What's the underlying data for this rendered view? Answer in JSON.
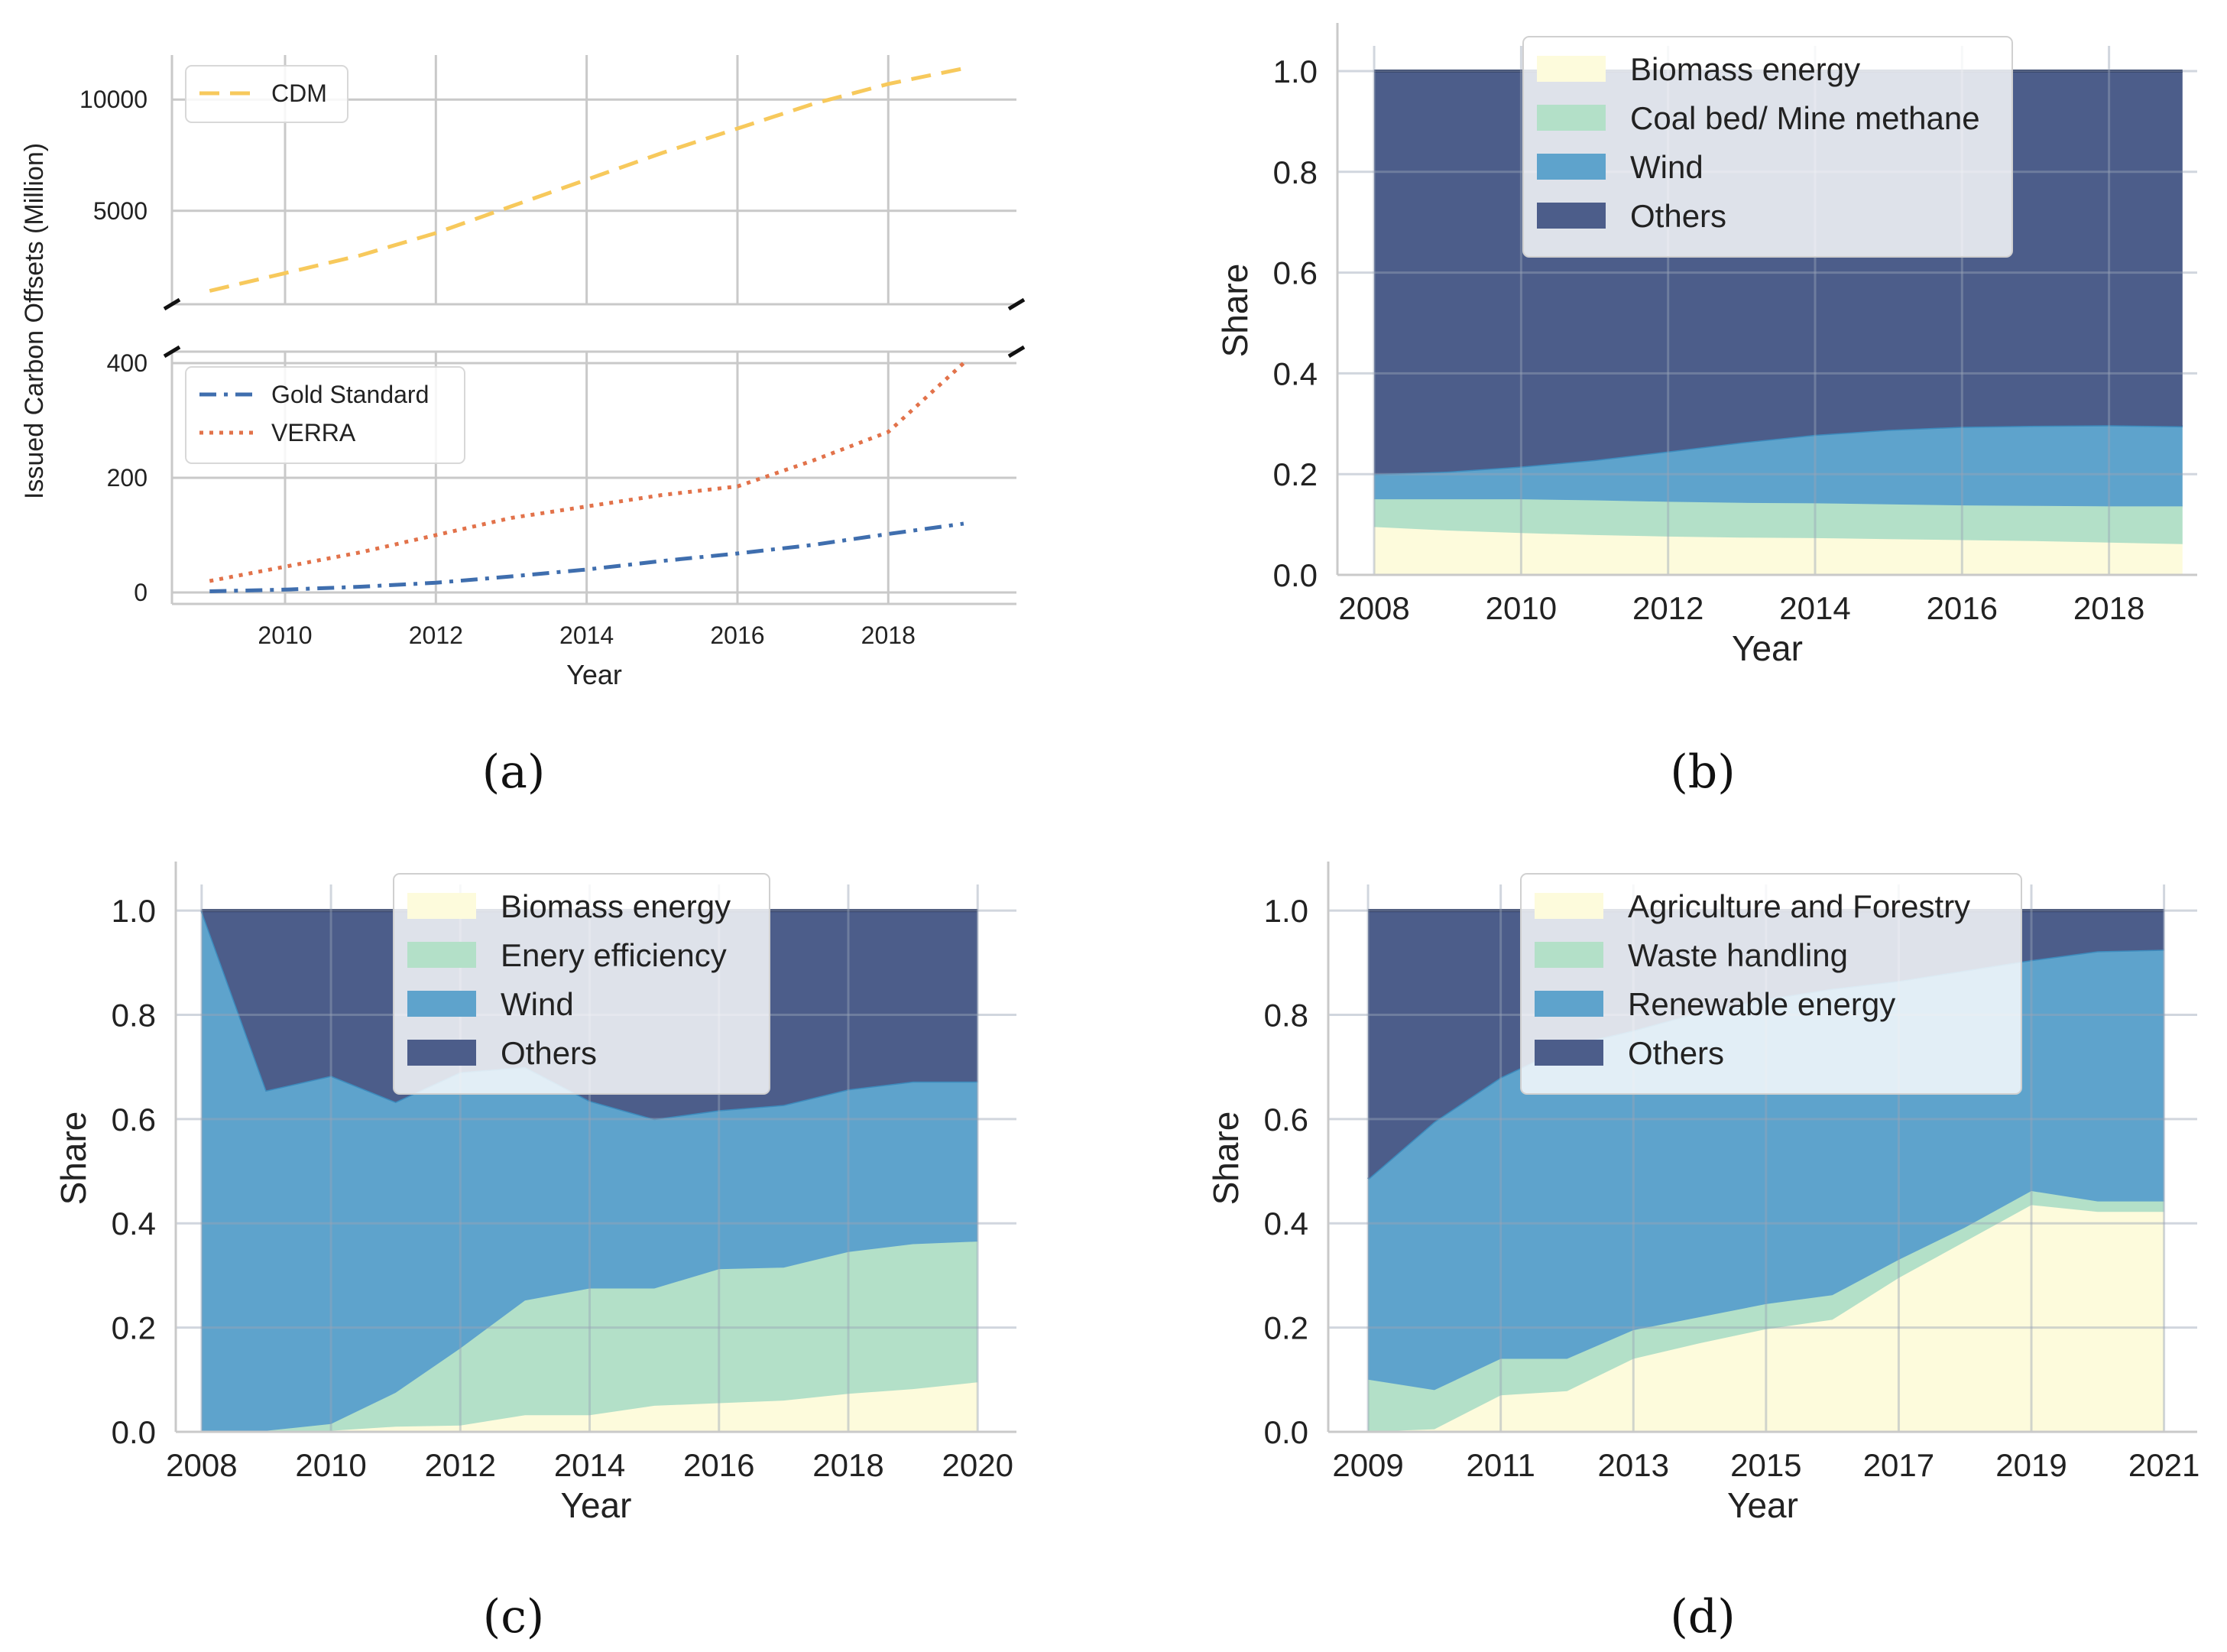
{
  "chart_data": [
    {
      "panel": "(a)",
      "type": "line",
      "broken_axis": true,
      "ylabel": "Issued Carbon Offsets (Million)",
      "xlabel": "Year",
      "x": [
        2009,
        2010,
        2011,
        2012,
        2013,
        2014,
        2015,
        2016,
        2017,
        2018,
        2019
      ],
      "xticks": [
        "2010",
        "2012",
        "2014",
        "2016",
        "2018"
      ],
      "xlim": [
        2008.5,
        2019.7
      ],
      "upper": {
        "ylim": [
          800,
          12000
        ],
        "yticks": [
          "5000",
          "10000"
        ],
        "legend": "top-left",
        "series": [
          {
            "name": "CDM",
            "color": "#f7c95c",
            "style": "dashed",
            "values": [
              1400,
              2200,
              3000,
              4000,
              5200,
              6400,
              7600,
              8700,
              9800,
              10700,
              11400
            ]
          }
        ]
      },
      "lower": {
        "ylim": [
          -20,
          420
        ],
        "yticks": [
          "0",
          "200",
          "400"
        ],
        "legend": "top-left",
        "series": [
          {
            "name": "Gold Standard",
            "color": "#3f6eae",
            "style": "dashdot",
            "values": [
              2,
              5,
              10,
              17,
              28,
              40,
              55,
              68,
              83,
              102,
              120
            ]
          },
          {
            "name": "VERRA",
            "color": "#e2724a",
            "style": "dotted",
            "values": [
              20,
              45,
              70,
              100,
              130,
              150,
              170,
              185,
              230,
              280,
              400
            ]
          }
        ]
      }
    },
    {
      "panel": "(b)",
      "type": "area",
      "stacked": true,
      "ylabel": "Share",
      "xlabel": "Year",
      "x": [
        2008,
        2009,
        2010,
        2011,
        2012,
        2013,
        2014,
        2015,
        2016,
        2017,
        2018,
        2019
      ],
      "xticks": [
        "2008",
        "2010",
        "2012",
        "2014",
        "2016",
        "2018"
      ],
      "xlim": [
        2007.5,
        2019.2
      ],
      "ylim": [
        0,
        1.05
      ],
      "yticks": [
        "0.0",
        "0.2",
        "0.4",
        "0.6",
        "0.8",
        "1.0"
      ],
      "legend": "top-center",
      "series": [
        {
          "name": "Biomass energy",
          "color": "#fdfbdc",
          "cum": [
            0.095,
            0.088,
            0.083,
            0.079,
            0.076,
            0.074,
            0.073,
            0.071,
            0.069,
            0.067,
            0.064,
            0.061
          ]
        },
        {
          "name": "Coal bed/ Mine methane",
          "color": "#b3e0c8",
          "cum": [
            0.15,
            0.15,
            0.15,
            0.148,
            0.145,
            0.143,
            0.142,
            0.14,
            0.138,
            0.137,
            0.136,
            0.136
          ]
        },
        {
          "name": "Wind",
          "color": "#5ea3cc",
          "cum": [
            0.2,
            0.205,
            0.215,
            0.228,
            0.245,
            0.263,
            0.278,
            0.288,
            0.294,
            0.296,
            0.297,
            0.295
          ]
        },
        {
          "name": "Others",
          "color": "#4c5d8a",
          "cum": [
            1,
            1,
            1,
            1,
            1,
            1,
            1,
            1,
            1,
            1,
            1,
            1
          ]
        }
      ]
    },
    {
      "panel": "(c)",
      "type": "area",
      "stacked": true,
      "ylabel": "Share",
      "xlabel": "Year",
      "x": [
        2008,
        2009,
        2010,
        2011,
        2012,
        2013,
        2014,
        2015,
        2016,
        2017,
        2018,
        2019,
        2020
      ],
      "xticks": [
        "2008",
        "2010",
        "2012",
        "2014",
        "2016",
        "2018",
        "2020"
      ],
      "xlim": [
        2007.6,
        2020.6
      ],
      "ylim": [
        0,
        1.05
      ],
      "yticks": [
        "0.0",
        "0.2",
        "0.4",
        "0.6",
        "0.8",
        "1.0"
      ],
      "legend": "top-center",
      "series": [
        {
          "name": "Biomass energy",
          "color": "#fdfbdc",
          "cum": [
            0,
            0,
            0.002,
            0.01,
            0.012,
            0.032,
            0.032,
            0.05,
            0.055,
            0.06,
            0.073,
            0.082,
            0.095
          ]
        },
        {
          "name": "Enery efficiency",
          "color": "#b3e0c8",
          "cum": [
            0,
            0.002,
            0.015,
            0.075,
            0.16,
            0.252,
            0.275,
            0.275,
            0.312,
            0.315,
            0.345,
            0.36,
            0.365
          ]
        },
        {
          "name": "Wind",
          "color": "#5ea3cc",
          "cum": [
            1.0,
            0.655,
            0.683,
            0.633,
            0.69,
            0.7,
            0.635,
            0.6,
            0.617,
            0.627,
            0.657,
            0.672,
            0.672
          ]
        },
        {
          "name": "Others",
          "color": "#4c5d8a",
          "cum": [
            1,
            1,
            1,
            1,
            1,
            1,
            1,
            1,
            1,
            1,
            1,
            1,
            1
          ]
        }
      ]
    },
    {
      "panel": "(d)",
      "type": "area",
      "stacked": true,
      "ylabel": "Share",
      "xlabel": "Year",
      "x": [
        2009,
        2010,
        2011,
        2012,
        2013,
        2014,
        2015,
        2016,
        2017,
        2018,
        2019,
        2020,
        2021
      ],
      "xticks": [
        "2009",
        "2011",
        "2013",
        "2015",
        "2017",
        "2019",
        "2021"
      ],
      "xlim": [
        2008.4,
        2021.5
      ],
      "ylim": [
        0,
        1.05
      ],
      "yticks": [
        "0.0",
        "0.2",
        "0.4",
        "0.6",
        "0.8",
        "1.0"
      ],
      "legend": "top-center",
      "series": [
        {
          "name": "Agriculture and Forestry",
          "color": "#fdfbdc",
          "cum": [
            0,
            0.005,
            0.07,
            0.078,
            0.14,
            0.17,
            0.197,
            0.215,
            0.295,
            0.365,
            0.435,
            0.422,
            0.422
          ]
        },
        {
          "name": "Waste handling",
          "color": "#b3e0c8",
          "cum": [
            0.1,
            0.08,
            0.14,
            0.14,
            0.195,
            0.22,
            0.245,
            0.262,
            0.33,
            0.392,
            0.462,
            0.442,
            0.442
          ]
        },
        {
          "name": "Renewable energy",
          "color": "#5ea3cc",
          "cum": [
            0.485,
            0.595,
            0.68,
            0.74,
            0.77,
            0.805,
            0.83,
            0.85,
            0.865,
            0.885,
            0.905,
            0.922,
            0.925
          ]
        },
        {
          "name": "Others",
          "color": "#4c5d8a",
          "cum": [
            1,
            1,
            1,
            1,
            1,
            1,
            1,
            1,
            1,
            1,
            1,
            1,
            1
          ]
        }
      ]
    }
  ]
}
